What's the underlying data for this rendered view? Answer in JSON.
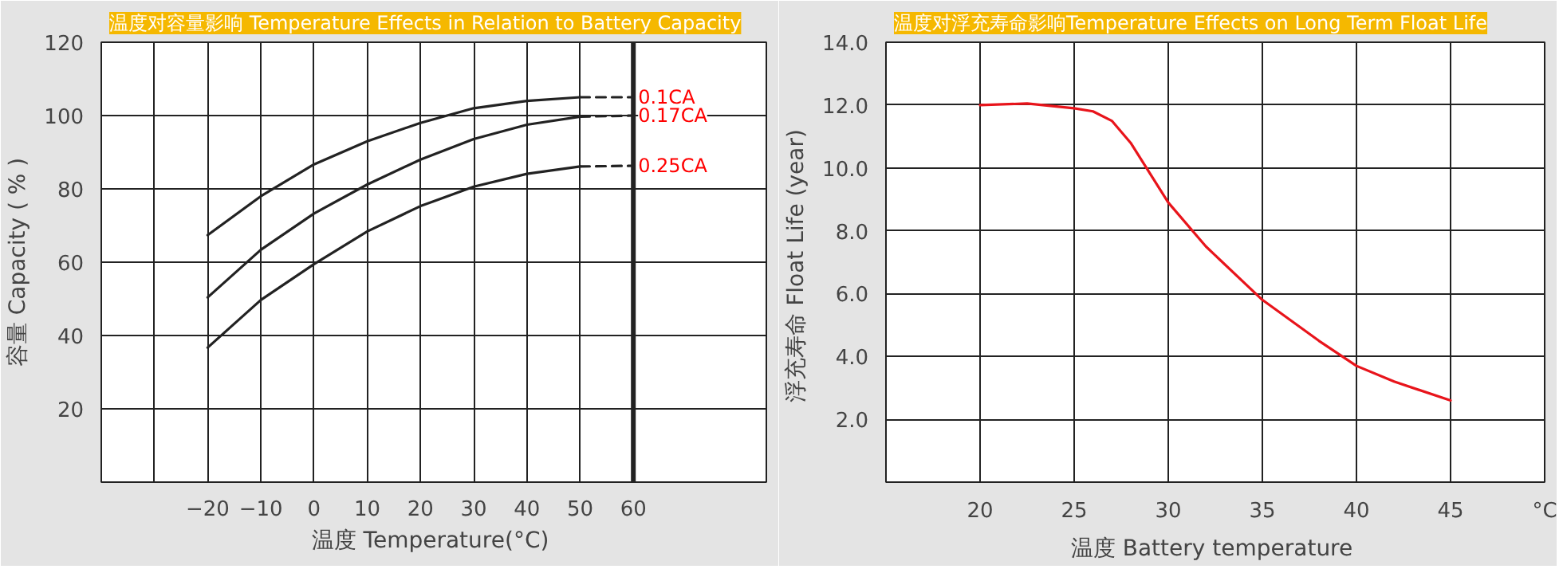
{
  "chart_data": [
    {
      "type": "line",
      "title": "温度对容量影响 Temperature Effects in Relation to Battery Capacity",
      "xlabel": "温度  Temperature(°C)",
      "ylabel": "容量 Capacity ( % )",
      "xlim": [
        -40,
        85
      ],
      "ylim": [
        0,
        120
      ],
      "xticks": [
        {
          "value": -30,
          "label": null
        },
        -20,
        -10,
        0,
        10,
        20,
        30,
        40,
        50,
        60
      ],
      "yticks": [
        20,
        40,
        60,
        80,
        100,
        120
      ],
      "grid": true,
      "marker": "none",
      "series": [
        {
          "color": "#222222",
          "x": [
            -20,
            -10,
            0,
            10,
            20,
            30,
            40,
            50
          ],
          "values": [
            67.4,
            78,
            86.7,
            93,
            98,
            102,
            104,
            105
          ],
          "line_style": "solid"
        },
        {
          "name": "0.1CA",
          "color": "#222222",
          "x": [
            50,
            60
          ],
          "values": [
            105,
            105
          ],
          "line_style": "dashed"
        },
        {
          "color": "#222222",
          "x": [
            -20,
            -10,
            0,
            10,
            20,
            30,
            40,
            50
          ],
          "values": [
            50.4,
            63.4,
            73.3,
            81.2,
            88,
            93.6,
            97.5,
            99.7
          ],
          "line_style": "solid"
        },
        {
          "name": "0.17CA",
          "color": "#222222",
          "x": [
            50,
            60
          ],
          "values": [
            99.7,
            100
          ],
          "line_style": "dashed"
        },
        {
          "color": "#222222",
          "x": [
            -20,
            -10,
            0,
            10,
            20,
            30,
            40,
            50
          ],
          "values": [
            36.7,
            49.7,
            59.5,
            68.4,
            75.3,
            80.6,
            84.1,
            86.1
          ],
          "line_style": "solid"
        },
        {
          "name": "0.25CA",
          "color": "#222222",
          "x": [
            50,
            60
          ],
          "values": [
            86.1,
            86.3
          ],
          "line_style": "dashed"
        }
      ],
      "ref_lines": [
        {
          "axis": "x",
          "value": 60,
          "color": "#222222"
        }
      ]
    },
    {
      "type": "line",
      "title": "温度对浮充寿命影响Temperature Effects on Long Term Float Life",
      "xlabel": "温度  Battery temperature",
      "ylabel": "浮充寿命  Float Life (year)",
      "xlim": [
        15,
        50
      ],
      "ylim": [
        0,
        14
      ],
      "xticks": [
        20,
        25,
        30,
        35,
        40,
        45,
        {
          "value": 50,
          "label": "°C"
        }
      ],
      "yticks": [
        {
          "value": 2,
          "label": "2.0"
        },
        {
          "value": 4,
          "label": "4.0"
        },
        {
          "value": 6,
          "label": "6.0"
        },
        {
          "value": 8,
          "label": "8.0"
        },
        {
          "value": 10,
          "label": "10.0"
        },
        {
          "value": 12,
          "label": "12.0"
        },
        {
          "value": 14,
          "label": "14.0"
        }
      ],
      "grid": true,
      "marker": "none",
      "series": [
        {
          "color": "#e8141b",
          "x": [
            20,
            22.5,
            25,
            26,
            27,
            28,
            30,
            32,
            35,
            38,
            40,
            42,
            45
          ],
          "values": [
            12.0,
            12.05,
            11.9,
            11.8,
            11.5,
            10.8,
            8.9,
            7.5,
            5.8,
            4.5,
            3.7,
            3.2,
            2.6
          ],
          "line_style": "solid"
        }
      ]
    }
  ]
}
